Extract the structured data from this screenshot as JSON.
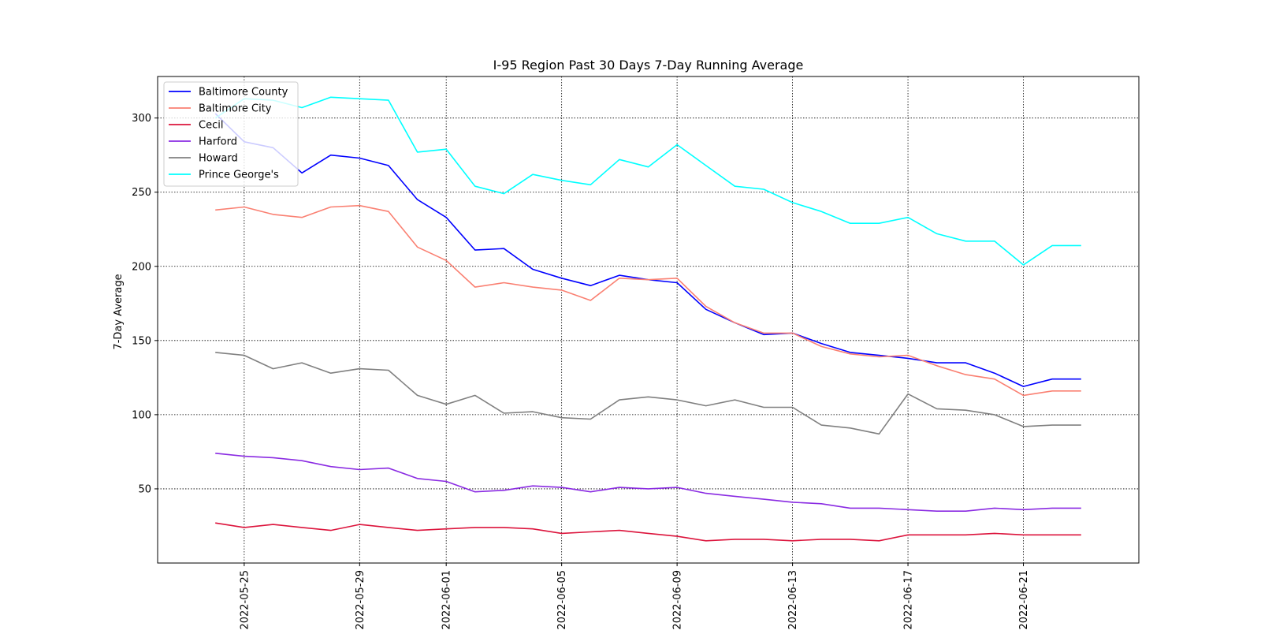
{
  "chart_data": {
    "type": "line",
    "title": "I-95 Region Past 30 Days 7-Day Running Average",
    "xlabel": "",
    "ylabel": "7-Day Average",
    "x_start": "2022-05-24",
    "x": [
      "2022-05-24",
      "2022-05-25",
      "2022-05-26",
      "2022-05-27",
      "2022-05-28",
      "2022-05-29",
      "2022-05-30",
      "2022-05-31",
      "2022-06-01",
      "2022-06-02",
      "2022-06-03",
      "2022-06-04",
      "2022-06-05",
      "2022-06-06",
      "2022-06-07",
      "2022-06-08",
      "2022-06-09",
      "2022-06-10",
      "2022-06-11",
      "2022-06-12",
      "2022-06-13",
      "2022-06-14",
      "2022-06-15",
      "2022-06-16",
      "2022-06-17",
      "2022-06-18",
      "2022-06-19",
      "2022-06-20",
      "2022-06-21",
      "2022-06-22",
      "2022-06-23"
    ],
    "x_ticks": [
      "2022-05-25",
      "2022-05-29",
      "2022-06-01",
      "2022-06-05",
      "2022-06-09",
      "2022-06-13",
      "2022-06-17",
      "2022-06-21"
    ],
    "xlim": [
      "2022-05-22",
      "2022-06-25"
    ],
    "ylim": [
      0,
      328
    ],
    "y_ticks": [
      50,
      100,
      150,
      200,
      250,
      300
    ],
    "grid": true,
    "legend_position": "top-left",
    "series": [
      {
        "name": "Baltimore County",
        "color": "#0000ff",
        "values": [
          303,
          284,
          280,
          263,
          275,
          273,
          268,
          245,
          233,
          211,
          212,
          198,
          192,
          187,
          194,
          191,
          189,
          171,
          162,
          154,
          155,
          148,
          142,
          140,
          138,
          135,
          135,
          128,
          119,
          124,
          124
        ]
      },
      {
        "name": "Baltimore City",
        "color": "#fa8072",
        "values": [
          238,
          240,
          235,
          233,
          240,
          241,
          237,
          213,
          204,
          186,
          189,
          186,
          184,
          177,
          192,
          191,
          192,
          173,
          162,
          155,
          155,
          146,
          141,
          139,
          140,
          133,
          127,
          124,
          113,
          116,
          116
        ]
      },
      {
        "name": "Cecil",
        "color": "#dc143c",
        "values": [
          27,
          24,
          26,
          24,
          22,
          26,
          24,
          22,
          23,
          24,
          24,
          23,
          20,
          21,
          22,
          20,
          18,
          15,
          16,
          16,
          15,
          16,
          16,
          15,
          19,
          19,
          19,
          20,
          19,
          19,
          19
        ]
      },
      {
        "name": "Harford",
        "color": "#8a2be2",
        "values": [
          74,
          72,
          71,
          69,
          65,
          63,
          64,
          57,
          55,
          48,
          49,
          52,
          51,
          48,
          51,
          50,
          51,
          47,
          45,
          43,
          41,
          40,
          37,
          37,
          36,
          35,
          35,
          37,
          36,
          37,
          37
        ]
      },
      {
        "name": "Howard",
        "color": "#808080",
        "values": [
          142,
          140,
          131,
          135,
          128,
          131,
          130,
          113,
          107,
          113,
          101,
          102,
          98,
          97,
          110,
          112,
          110,
          106,
          110,
          105,
          105,
          93,
          91,
          87,
          114,
          104,
          103,
          100,
          92,
          93,
          93
        ]
      },
      {
        "name": "Prince George's",
        "color": "#00ffff",
        "values": [
          300,
          313,
          312,
          307,
          314,
          313,
          312,
          277,
          279,
          254,
          249,
          262,
          258,
          255,
          272,
          267,
          282,
          268,
          254,
          252,
          243,
          237,
          229,
          229,
          233,
          222,
          217,
          217,
          201,
          214,
          214
        ]
      }
    ]
  }
}
